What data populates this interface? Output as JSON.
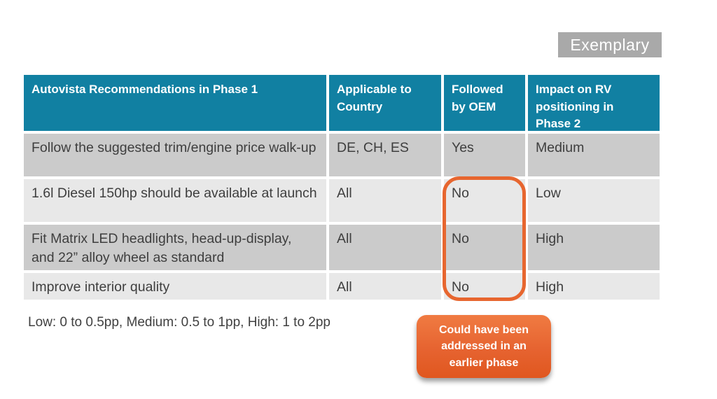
{
  "exemplary_label": "Exemplary",
  "table": {
    "headers": [
      "Autovista Recommendations in Phase 1",
      "Applicable to Country",
      "Followed by OEM",
      "Impact on RV positioning in Phase 2"
    ],
    "rows": [
      {
        "recommendation": "Follow the suggested trim/engine price walk-up",
        "country": "DE, CH, ES",
        "followed": "Yes",
        "impact": "Medium"
      },
      {
        "recommendation": "1.6l Diesel 150hp should be available at launch",
        "country": "All",
        "followed": "No",
        "impact": "Low"
      },
      {
        "recommendation": "Fit Matrix LED headlights, head-up-display, and 22” alloy wheel as standard",
        "country": "All",
        "followed": "No",
        "impact": "High"
      },
      {
        "recommendation": "Improve interior quality",
        "country": "All",
        "followed": "No",
        "impact": "High"
      }
    ]
  },
  "footnote": "Low: 0 to 0.5pp, Medium: 0.5 to 1pp, High: 1 to 2pp",
  "callout": {
    "text": "Could have been addressed in an earlier phase"
  },
  "colors": {
    "header_bg": "#1180A2",
    "row_dark": "#CBCBCB",
    "row_light": "#E8E8E8",
    "highlight_orange": "#E7662F",
    "callout_orange": "#E66330",
    "exemplary_gray": "#A9A9A9",
    "body_text": "#3E3E3E"
  }
}
